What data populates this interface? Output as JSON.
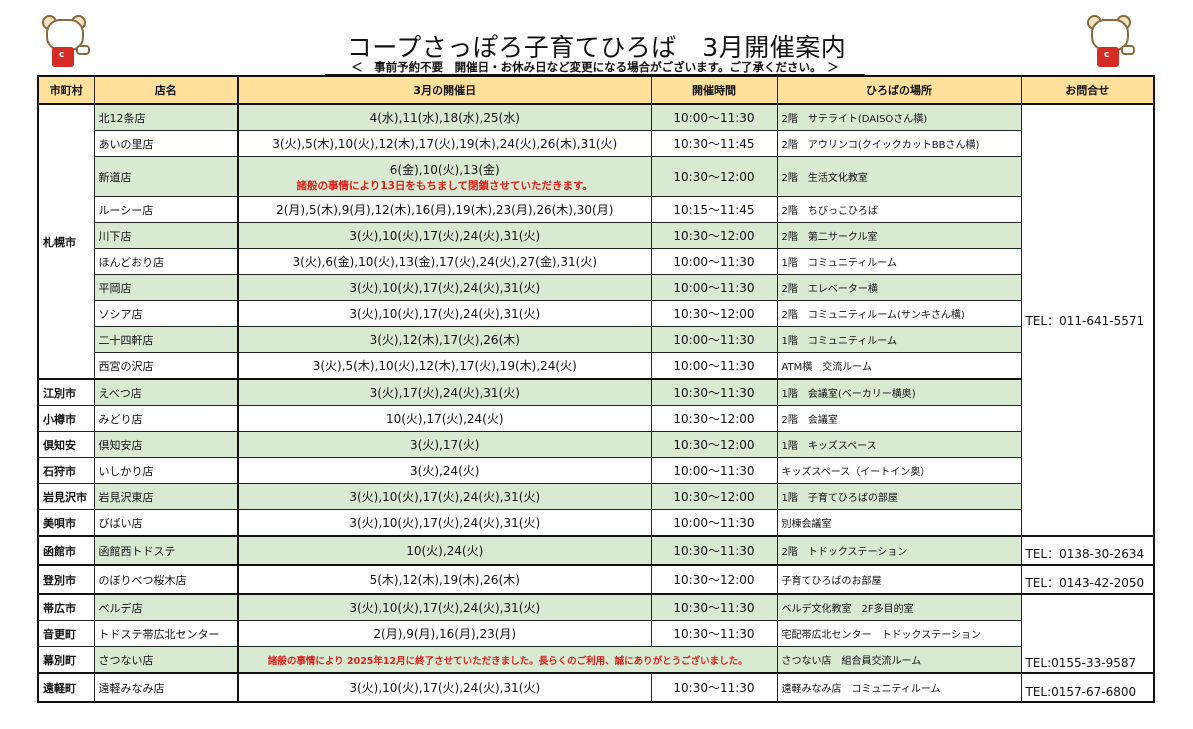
{
  "title": "コープさっぽろ子育てひろば　3月開催案内",
  "subtitle": "＜　事前予約不要　開催日・お休み日など変更になる場合がございます。ご了承ください。　＞",
  "headers": [
    "市町村",
    "店名",
    "3月の開催日",
    "開催時間",
    "ひろばの場所",
    "お問合せ"
  ],
  "sapporo": "札幌市",
  "tel": {
    "sapporo": "TEL：011-641-5571",
    "hakodate": "TEL：0138-30-2634",
    "noboribetsu": "TEL：0143-42-2050",
    "tokachi": "TEL:0155-33-9587",
    "engaru": "TEL:0157-67-6800"
  },
  "rows": [
    {
      "city": "札幌市",
      "store": "北12条店",
      "dates": "4(水),11(水),18(水),25(水)",
      "time": "10:00～11:30",
      "place": "2階　サテライト(DAISOさん横)"
    },
    {
      "city": "札幌市",
      "store": "あいの里店",
      "dates": "3(火),5(木),10(火),12(木),17(火),19(木),24(火),26(木),31(火)",
      "time": "10:30～11:45",
      "place": "2階　アウリンコ(クイックカットBBさん横)"
    },
    {
      "city": "札幌市",
      "store": "新道店",
      "dates": "6(金),10(火),13(金)",
      "note": "諸般の事情により13日をもちまして閉鎖させていただきます。",
      "time": "10:30～12:00",
      "place": "2階　生活文化教室"
    },
    {
      "city": "札幌市",
      "store": "ルーシー店",
      "dates": "2(月),5(木),9(月),12(木),16(月),19(木),23(月),26(木),30(月)",
      "time": "10:15～11:45",
      "place": "2階　ちびっこひろば"
    },
    {
      "city": "札幌市",
      "store": "川下店",
      "dates": "3(火),10(火),17(火),24(火),31(火)",
      "time": "10:30～12:00",
      "place": "2階　第二サークル室"
    },
    {
      "city": "札幌市",
      "store": "ほんどおり店",
      "dates": "3(火),6(金),10(火),13(金),17(火),24(火),27(金),31(火)",
      "time": "10:00～11:30",
      "place": "1階　コミュニティルーム"
    },
    {
      "city": "札幌市",
      "store": "平岡店",
      "dates": "3(火),10(火),17(火),24(火),31(火)",
      "time": "10:00～11:30",
      "place": "2階　エレベーター横"
    },
    {
      "city": "札幌市",
      "store": "ソシア店",
      "dates": "3(火),10(火),17(火),24(火),31(火)",
      "time": "10:30～12:00",
      "place": "2階　コミュニティルーム(サンキさん横)"
    },
    {
      "city": "札幌市",
      "store": "二十四軒店",
      "dates": "3(火),12(木),17(火),26(木)",
      "time": "10:00～11:30",
      "place": "1階　コミュニティルーム"
    },
    {
      "city": "札幌市",
      "store": "西宮の沢店",
      "dates": "3(火),5(木),10(火),12(木),17(火),19(木),24(火)",
      "time": "10:00～11:30",
      "place": "ATM横　交流ルーム"
    },
    {
      "city": "江別市",
      "store": "えべつ店",
      "dates": "3(火),17(火),24(火),31(火)",
      "time": "10:30～11:30",
      "place": "1階　会議室(ベーカリー横奥)"
    },
    {
      "city": "小樽市",
      "store": "みどり店",
      "dates": "10(火),17(火),24(火)",
      "time": "10:30～12:00",
      "place": "2階　会議室"
    },
    {
      "city": "倶知安",
      "store": "倶知安店",
      "dates": "3(火),17(火)",
      "time": "10:30～12:00",
      "place": "1階　キッズスペース"
    },
    {
      "city": "石狩市",
      "store": "いしかり店",
      "dates": "3(火),24(火)",
      "time": "10:00～11:30",
      "place": "キッズスペース（イートイン奥）"
    },
    {
      "city": "岩見沢市",
      "store": "岩見沢東店",
      "dates": "3(火),10(火),17(火),24(火),31(火)",
      "time": "10:30～12:00",
      "place": "1階　子育てひろばの部屋"
    },
    {
      "city": "美唄市",
      "store": "びばい店",
      "dates": "3(火),10(火),17(火),24(火),31(火)",
      "time": "10:00～11:30",
      "place": "別棟会議室"
    },
    {
      "city": "函館市",
      "store": "函館西トドステ",
      "dates": "10(火),24(火)",
      "time": "10:30～11:30",
      "place": "2階　トドックステーション"
    },
    {
      "city": "登別市",
      "store": "のぼりべつ桜木店",
      "dates": "5(木),12(木),19(木),26(木)",
      "time": "10:30～12:00",
      "place": "子育てひろばのお部屋"
    },
    {
      "city": "帯広市",
      "store": "ベルデ店",
      "dates": "3(火),10(火),17(火),24(火),31(火)",
      "time": "10:30～11:30",
      "place": "ベルデ文化教室　2F多目的室"
    },
    {
      "city": "音更町",
      "store": "トドステ帯広北センター",
      "dates": "2(月),9(月),16(月),23(月)",
      "time": "10:30～11:30",
      "place": "宅配帯広北センター　トドックステーション"
    },
    {
      "city": "幕別町",
      "store": "さつない店",
      "note": "諸般の事情により 2025年12月に終了させていただきました。長らくのご利用、誠にありがとうございました。",
      "place": "さつない店　組合員交流ルーム"
    },
    {
      "city": "遠軽町",
      "store": "遠軽みなみ店",
      "dates": "3(火),10(火),17(火),24(火),31(火)",
      "time": "10:30～11:30",
      "place": "遠軽みなみ店　コミュニティルーム"
    }
  ]
}
